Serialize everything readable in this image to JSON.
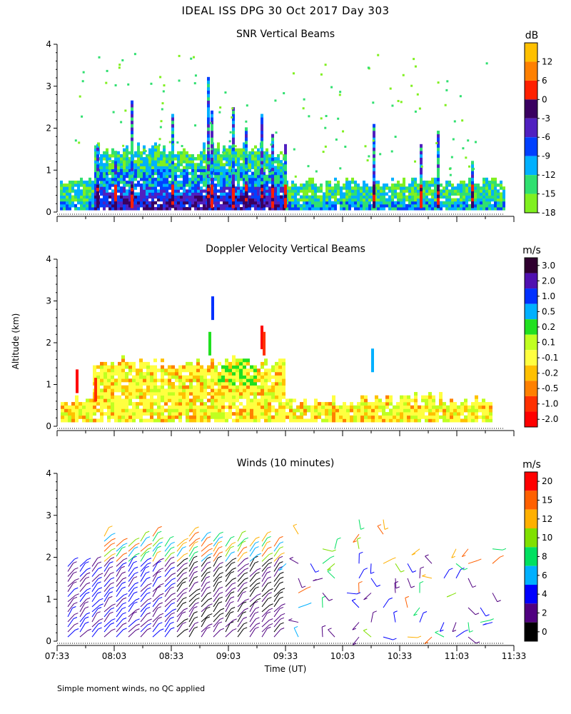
{
  "title": "IDEAL ISS DPG  30 Oct 2017 Day 303",
  "footnote": "Simple moment winds, no QC applied",
  "shared_ylabel": "Altitude (km)",
  "shared_xlabel": "Time (UT)",
  "chart_data": [
    {
      "type": "heatmap",
      "title": "SNR Vertical Beams",
      "unit": "dB",
      "ylim": [
        0,
        4
      ],
      "yticks": [
        "0",
        "1",
        "2",
        "3",
        "4"
      ],
      "x_range": [
        "07:33",
        "11:33"
      ],
      "colorbar_labels": [
        "12",
        "6",
        "0",
        "-3",
        "-6",
        "-9",
        "-12",
        "-15",
        "-18"
      ],
      "colorbar_colors": [
        "#ffc000",
        "#ff8000",
        "#ff2000",
        "#3a0060",
        "#5020c0",
        "#0040ff",
        "#00b0ff",
        "#30e070",
        "#80f020"
      ]
    },
    {
      "type": "heatmap",
      "title": "Doppler Velocity Vertical Beams",
      "unit": "m/s",
      "ylim": [
        0,
        4
      ],
      "yticks": [
        "0",
        "1",
        "2",
        "3",
        "4"
      ],
      "x_range": [
        "07:33",
        "11:33"
      ],
      "colorbar_labels": [
        "3.0",
        "2.0",
        "1.0",
        "0.5",
        "0.2",
        "0.1",
        "-0.1",
        "-0.2",
        "-0.5",
        "-1.0",
        "-2.0"
      ],
      "colorbar_colors": [
        "#300030",
        "#5010b0",
        "#0030ff",
        "#00b0ff",
        "#20e020",
        "#c0ff20",
        "#ffff40",
        "#ffc000",
        "#ff8000",
        "#ff3000",
        "#ff0000"
      ]
    },
    {
      "type": "scatter",
      "title": "Winds (10 minutes)",
      "unit": "m/s",
      "ylim": [
        0,
        4
      ],
      "yticks": [
        "0",
        "1",
        "2",
        "3",
        "4"
      ],
      "xticks": [
        "07:33",
        "08:03",
        "08:33",
        "09:03",
        "09:33",
        "10:03",
        "10:33",
        "11:03",
        "11:33"
      ],
      "colorbar_labels": [
        "20",
        "15",
        "12",
        "10",
        "8",
        "6",
        "4",
        "2",
        "0"
      ],
      "colorbar_colors": [
        "#ff0000",
        "#ff6000",
        "#ffb000",
        "#80e000",
        "#00e060",
        "#00b0ff",
        "#0000ff",
        "#500080",
        "#000000"
      ]
    }
  ]
}
